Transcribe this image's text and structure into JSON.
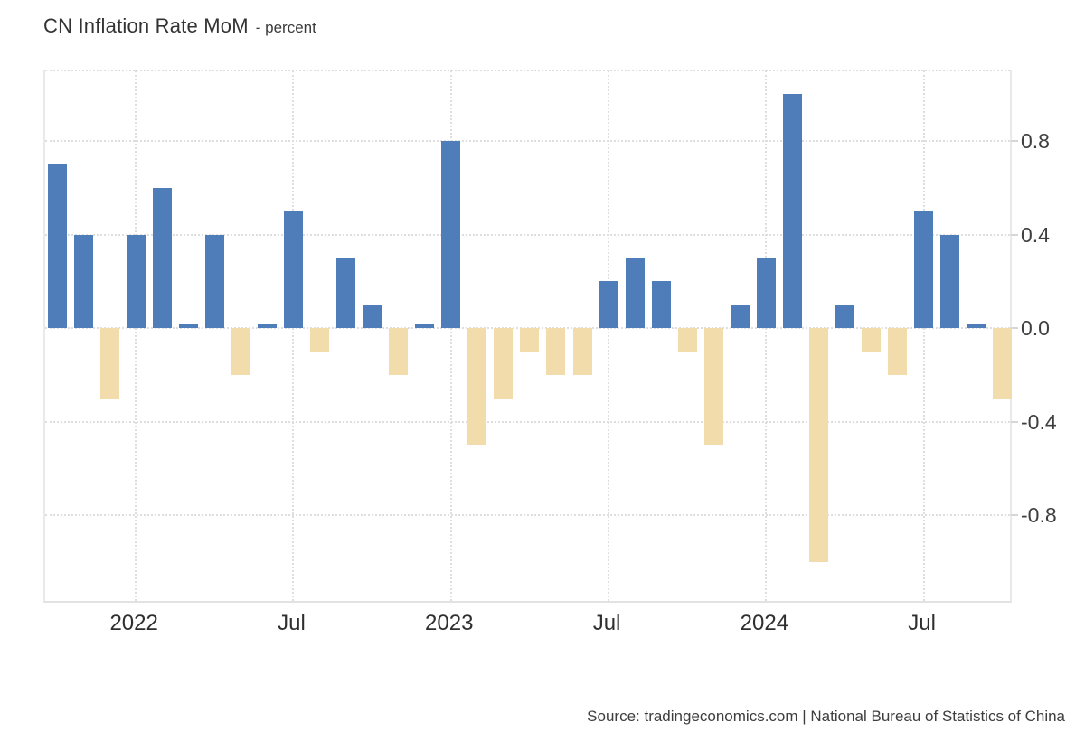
{
  "header": {
    "title": "CN Inflation Rate MoM",
    "subtitle": "- percent"
  },
  "footer": {
    "source": "Source: tradingeconomics.com | National Bureau of Statistics of China"
  },
  "colors": {
    "bar_positive": "#4e7dba",
    "bar_negative": "#f3dcab",
    "gridline": "#dedede",
    "axis_border": "#e9e9e9",
    "tick": "#d6d6d6",
    "title_text": "#333333",
    "axis_label_text": "#3f3f3f",
    "source_text": "#3d3d3d",
    "background": "#ffffff"
  },
  "chart_data": {
    "type": "bar",
    "title": "CN Inflation Rate MoM",
    "unit": "percent",
    "x": [
      "Oct 2021",
      "Nov 2021",
      "Dec 2021",
      "Jan 2022",
      "Feb 2022",
      "Mar 2022",
      "Apr 2022",
      "May 2022",
      "Jun 2022",
      "Jul 2022",
      "Aug 2022",
      "Sep 2022",
      "Oct 2022",
      "Nov 2022",
      "Dec 2022",
      "Jan 2023",
      "Feb 2023",
      "Mar 2023",
      "Apr 2023",
      "May 2023",
      "Jun 2023",
      "Jul 2023",
      "Aug 2023",
      "Sep 2023",
      "Oct 2023",
      "Nov 2023",
      "Dec 2023",
      "Jan 2024",
      "Feb 2024",
      "Mar 2024",
      "Apr 2024",
      "May 2024",
      "Jun 2024",
      "Jul 2024",
      "Aug 2024",
      "Sep 2024",
      "Oct 2024"
    ],
    "values": [
      0.7,
      0.4,
      -0.3,
      0.4,
      0.6,
      0.0,
      0.4,
      -0.2,
      0.0,
      0.5,
      -0.1,
      0.3,
      0.1,
      -0.2,
      0.0,
      0.8,
      -0.5,
      -0.3,
      -0.1,
      -0.2,
      -0.2,
      0.2,
      0.3,
      0.2,
      -0.1,
      -0.5,
      0.1,
      0.3,
      1.0,
      -1.0,
      0.1,
      -0.1,
      -0.2,
      0.5,
      0.4,
      0.0,
      -0.3
    ],
    "x_ticks": [
      {
        "index": 3,
        "label": "2022"
      },
      {
        "index": 9,
        "label": "Jul"
      },
      {
        "index": 15,
        "label": "2023"
      },
      {
        "index": 21,
        "label": "Jul"
      },
      {
        "index": 27,
        "label": "2024"
      },
      {
        "index": 33,
        "label": "Jul"
      }
    ],
    "y_ticks": [
      0.8,
      0.4,
      0.0,
      -0.4,
      -0.8
    ],
    "ylim": [
      -1.17,
      1.1
    ],
    "xlabel": "",
    "ylabel": "percent",
    "grid": "dotted",
    "legend": "none",
    "y_axis_side": "right"
  }
}
